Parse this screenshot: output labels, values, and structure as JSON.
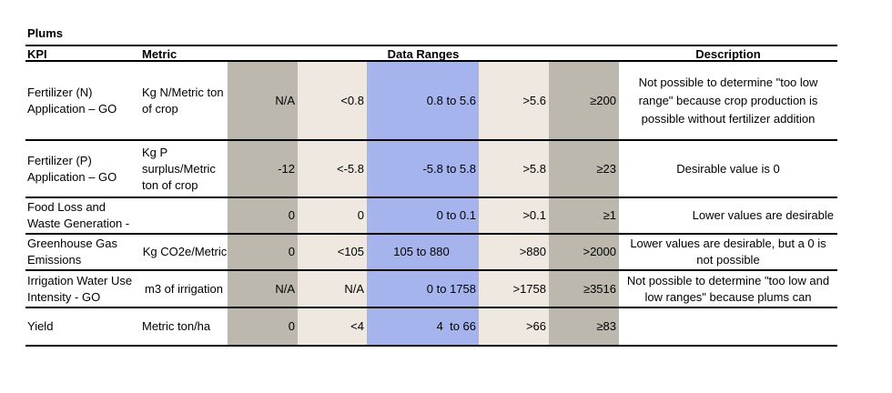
{
  "title": "Plums",
  "headers": {
    "kpi": "KPI",
    "metric": "Metric",
    "data_ranges": "Data Ranges",
    "description": "Description"
  },
  "rows": [
    {
      "kpi": "Fertilizer (N) Application – GO",
      "metric": "Kg N/Metric ton of crop",
      "ranges": [
        "N/A",
        "<0.8",
        "0.8 to 5.6",
        ">5.6",
        "≥200"
      ],
      "description": "Not possible to determine \"too low range\" because crop production is possible without fertilizer addition"
    },
    {
      "kpi": "Fertilizer (P) Application – GO",
      "metric": "Kg P surplus/Metric ton of crop",
      "ranges": [
        "-12",
        "<-5.8",
        "-5.8 to 5.8",
        ">5.8",
        "≥23"
      ],
      "description": "Desirable value is 0"
    },
    {
      "kpi": "Food Loss and Waste Generation -",
      "metric": "",
      "ranges": [
        "0",
        "0",
        "0 to 0.1",
        ">0.1",
        "≥1"
      ],
      "description": "Lower values are desirable"
    },
    {
      "kpi": "Greenhouse Gas Emissions",
      "metric": "Kg CO2e/Metric",
      "ranges": [
        "0",
        "<105",
        "105 to 880",
        ">880",
        ">2000"
      ],
      "description": "Lower values are desirable, but a 0 is not possible"
    },
    {
      "kpi": "Irrigation Water Use Intensity - GO",
      "metric": "m3 of irrigation",
      "ranges": [
        "N/A",
        "N/A",
        "0 to 1758",
        ">1758",
        "≥3516"
      ],
      "description": "Not possible to determine \"too low and low ranges\" because plums can"
    },
    {
      "kpi": "Yield",
      "metric": "Metric ton/ha",
      "ranges": [
        "0",
        "<4",
        "4  to 66",
        ">66",
        "≥83"
      ],
      "description": ""
    }
  ]
}
